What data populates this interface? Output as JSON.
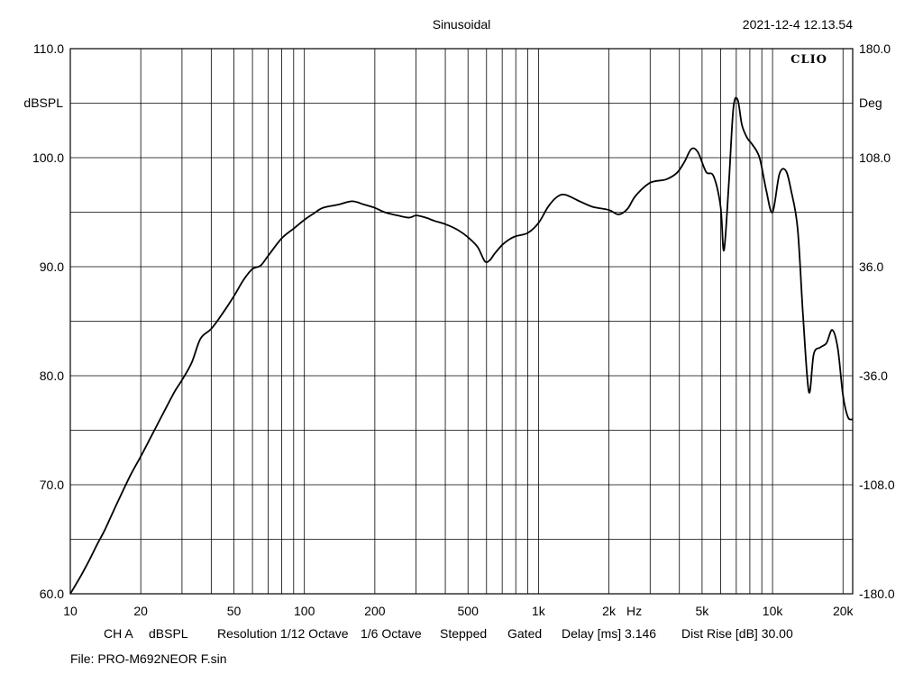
{
  "header": {
    "title": "Sinusoidal",
    "timestamp": "2021-12-4 12.13.54",
    "brand": "CLIO"
  },
  "info": {
    "channel": "CH A",
    "unit": "dBSPL",
    "resolution": "Resolution 1/12 Octave",
    "smoothing": "1/6 Octave",
    "mode": "Stepped",
    "gating": "Gated",
    "delay": "Delay [ms] 3.146",
    "dist_rise": "Dist Rise [dB] 30.00"
  },
  "file": "File: PRO-M692NEOR F.sin",
  "chart_data": {
    "type": "line",
    "title": "Sinusoidal",
    "xscale": "log",
    "xlim": [
      10,
      22000
    ],
    "ylim": [
      60,
      110
    ],
    "y2lim": [
      -180,
      180
    ],
    "ylabel": "dBSPL",
    "y2label": "Deg",
    "xunit": "Hz",
    "grid": true,
    "x_tick_labels": [
      "10",
      "20",
      "50",
      "100",
      "200",
      "500",
      "1k",
      "2k",
      "5k",
      "10k",
      "20k"
    ],
    "x_tick_values": [
      10,
      20,
      50,
      100,
      200,
      500,
      1000,
      2000,
      5000,
      10000,
      20000
    ],
    "y_tick_labels": [
      "110.0",
      "100.0",
      "90.0",
      "80.0",
      "70.0",
      "60.0"
    ],
    "y_tick_values": [
      110,
      100,
      90,
      80,
      70,
      60
    ],
    "y2_tick_labels": [
      "180.0",
      "108.0",
      "36.0",
      "-36.0",
      "-108.0",
      "-180.0"
    ],
    "y2_tick_values": [
      180,
      108,
      36,
      -36,
      -108,
      -180
    ],
    "series": [
      {
        "color": "#000000",
        "x": [
          10,
          11,
          12,
          13,
          14,
          15,
          16,
          18,
          20,
          22,
          25,
          28,
          30,
          33,
          36,
          40,
          45,
          50,
          55,
          60,
          65,
          70,
          80,
          90,
          100,
          110,
          120,
          140,
          160,
          180,
          200,
          220,
          250,
          280,
          300,
          330,
          360,
          400,
          450,
          500,
          550,
          590,
          620,
          650,
          700,
          750,
          800,
          900,
          1000,
          1100,
          1200,
          1300,
          1500,
          1700,
          2000,
          2200,
          2400,
          2600,
          3000,
          3500,
          3900,
          4200,
          4500,
          4800,
          5200,
          5600,
          6000,
          6200,
          6500,
          6800,
          7100,
          7400,
          7800,
          8200,
          8800,
          9400,
          10000,
          10700,
          11400,
          12000,
          12800,
          13500,
          14300,
          15000,
          16000,
          17000,
          18000,
          19000,
          20000,
          21000,
          22000
        ],
        "y": [
          60.0,
          61.5,
          63.0,
          64.5,
          65.8,
          67.2,
          68.5,
          70.8,
          72.6,
          74.3,
          76.6,
          78.6,
          79.6,
          81.2,
          83.4,
          84.3,
          85.8,
          87.3,
          88.8,
          89.8,
          90.1,
          91.0,
          92.6,
          93.5,
          94.3,
          94.9,
          95.4,
          95.7,
          96.0,
          95.7,
          95.4,
          95.0,
          94.7,
          94.5,
          94.7,
          94.5,
          94.2,
          93.9,
          93.4,
          92.7,
          91.8,
          90.5,
          90.6,
          91.2,
          92.0,
          92.5,
          92.8,
          93.1,
          94.0,
          95.5,
          96.4,
          96.6,
          96.0,
          95.5,
          95.2,
          94.8,
          95.3,
          96.5,
          97.7,
          98.0,
          98.6,
          99.6,
          100.8,
          100.5,
          98.7,
          98.3,
          95.5,
          91.5,
          97.5,
          104.5,
          105.3,
          103.0,
          101.8,
          101.2,
          100.0,
          97.0,
          95.0,
          98.5,
          98.8,
          97.0,
          93.5,
          85.5,
          78.5,
          82.0,
          82.6,
          83.0,
          84.2,
          82.5,
          78.2,
          76.2,
          76.0
        ]
      }
    ]
  }
}
